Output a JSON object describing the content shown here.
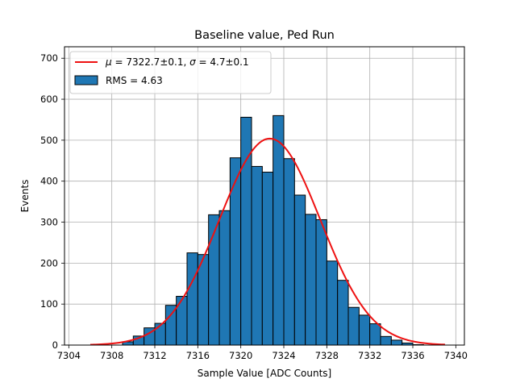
{
  "chart_data": {
    "type": "bar",
    "title": "Baseline value, Ped Run",
    "xlabel": "Sample Value [ADC Counts]",
    "ylabel": "Events",
    "xlim": [
      7303.6,
      7340.8
    ],
    "ylim": [
      0,
      728
    ],
    "grid": true,
    "legend_position": "top-left",
    "x_ticks": [
      7304,
      7308,
      7312,
      7316,
      7320,
      7324,
      7328,
      7332,
      7336,
      7340
    ],
    "y_ticks": [
      0,
      100,
      200,
      300,
      400,
      500,
      600,
      700
    ],
    "histogram": {
      "name": "RMS = 4.63",
      "bin_edges": [
        7309,
        7310,
        7311,
        7312,
        7313,
        7314,
        7315,
        7316,
        7317,
        7318,
        7319,
        7320,
        7321,
        7322,
        7323,
        7324,
        7325,
        7326,
        7327,
        7328,
        7329,
        7330,
        7331,
        7332,
        7333,
        7334,
        7335,
        7336,
        7337
      ],
      "counts": [
        8,
        22,
        42,
        53,
        97,
        119,
        225,
        221,
        318,
        328,
        457,
        556,
        436,
        422,
        560,
        455,
        366,
        319,
        306,
        205,
        158,
        92,
        73,
        52,
        21,
        12,
        5,
        1
      ],
      "color": "#1f77b4",
      "edge_color": "#000000"
    },
    "fit": {
      "name": "$\\mu = 7322.7 \\pm 0.1$, $\\sigma = 4.7 \\pm 0.1$",
      "legend_parts": {
        "mu_symbol": "μ",
        "mu_text": " = 7322.7±0.1, ",
        "sigma_symbol": "σ",
        "sigma_text": " = 4.7±0.1"
      },
      "type": "gaussian",
      "mu": 7322.7,
      "sigma": 4.7,
      "amplitude": 504,
      "x_range": [
        7306,
        7339
      ],
      "color": "#ee1111"
    }
  }
}
